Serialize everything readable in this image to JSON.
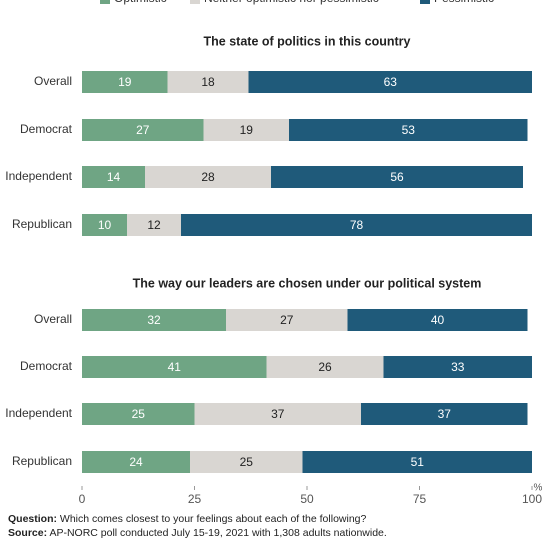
{
  "chart_data": [
    {
      "type": "bar",
      "orientation": "horizontal",
      "stacked": true,
      "title": "The state of politics in this country",
      "categories": [
        "Overall",
        "Democrat",
        "Independent",
        "Republican"
      ],
      "series": [
        {
          "name": "Optimistic",
          "color": "#6fa584",
          "values": [
            19,
            27,
            14,
            10
          ]
        },
        {
          "name": "Neither optimistic nor pessimistic",
          "color": "#d9d6d2",
          "values": [
            18,
            19,
            28,
            12
          ]
        },
        {
          "name": "Pessimistic",
          "color": "#1f5a7a",
          "values": [
            63,
            53,
            56,
            78
          ]
        }
      ],
      "xlim": [
        0,
        100
      ]
    },
    {
      "type": "bar",
      "orientation": "horizontal",
      "stacked": true,
      "title": "The way our leaders are chosen under our political system",
      "categories": [
        "Overall",
        "Democrat",
        "Independent",
        "Republican"
      ],
      "series": [
        {
          "color": "#6fa584",
          "values": [
            32,
            41,
            25,
            24
          ]
        },
        {
          "color": "#d9d6d2",
          "values": [
            27,
            26,
            37,
            25
          ]
        },
        {
          "color": "#1f5a7a",
          "values": [
            40,
            33,
            37,
            51
          ]
        }
      ],
      "xlim": [
        0,
        100
      ],
      "xticks": [
        0,
        25,
        50,
        75,
        100
      ],
      "x_label": "%"
    }
  ],
  "notes": {
    "question_label": "Question:",
    "question": "Which comes closest to your feelings about each of the following?",
    "source_label": "Source:",
    "source": "AP-NORC poll conducted July 15-19, 2021 with 1,308 adults nationwide."
  }
}
